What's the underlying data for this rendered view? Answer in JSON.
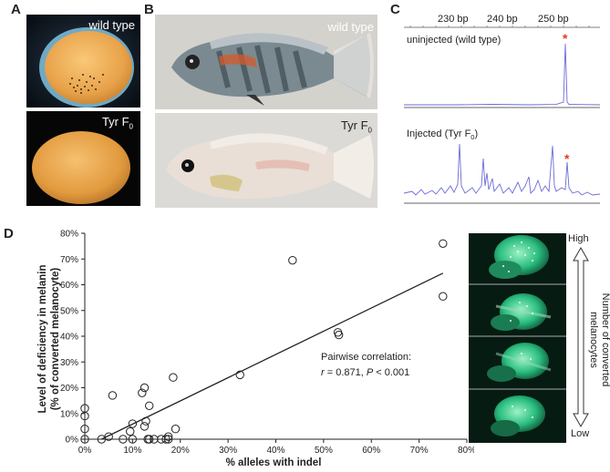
{
  "panels": {
    "a": {
      "letter": "A",
      "top_label": "wild type",
      "bottom_label_main": "Tyr F",
      "bottom_label_sub": "0"
    },
    "b": {
      "letter": "B",
      "top_label": "wild type",
      "bottom_label_main": "Tyr F",
      "bottom_label_sub": "0"
    },
    "c": {
      "letter": "C",
      "bp_labels": [
        "230 bp",
        "240 bp",
        "250 bp"
      ],
      "uninjected_label": "uninjected (wild type)",
      "injected_label_main": "Injected (Tyr F",
      "injected_label_sub": "0",
      "injected_label_end": ")",
      "star": "*"
    },
    "d": {
      "letter": "D",
      "side_high": "High",
      "side_low": "Low",
      "side_title": "Number of converted melanocytes",
      "correlation_title": "Pairwise correlation:",
      "r_label": "r",
      "r_text": " = 0.871, ",
      "p_label": "P",
      "p_text": " < 0.001"
    }
  },
  "chart_data": {
    "type": "scatter",
    "title": "",
    "xlabel": "% alleles with indel",
    "ylabel_line1": "Level of deficiency in melanin",
    "ylabel_line2": "(% of converted melanocyte)",
    "xlim": [
      0,
      80
    ],
    "ylim": [
      0,
      80
    ],
    "x_ticks": [
      0,
      10,
      20,
      30,
      40,
      50,
      60,
      70,
      80
    ],
    "y_ticks": [
      0,
      10,
      20,
      30,
      40,
      50,
      60,
      70,
      80
    ],
    "x_tick_labels": [
      "0%",
      "10%",
      "20%",
      "30%",
      "40%",
      "50%",
      "60%",
      "70%",
      "80%"
    ],
    "y_tick_labels": [
      "0%",
      "10%",
      "20%",
      "30%",
      "40%",
      "50%",
      "60%",
      "70%",
      "80%"
    ],
    "points": [
      [
        0,
        12
      ],
      [
        0,
        9
      ],
      [
        0,
        4
      ],
      [
        0,
        0
      ],
      [
        3.5,
        0
      ],
      [
        5,
        1
      ],
      [
        5.8,
        17
      ],
      [
        8,
        0
      ],
      [
        9.5,
        3
      ],
      [
        10,
        6
      ],
      [
        10,
        0
      ],
      [
        12,
        18
      ],
      [
        12.5,
        20
      ],
      [
        12.5,
        5
      ],
      [
        12.8,
        7
      ],
      [
        13.2,
        0
      ],
      [
        13.5,
        13
      ],
      [
        13.5,
        0
      ],
      [
        14.5,
        0
      ],
      [
        16,
        0
      ],
      [
        17,
        0
      ],
      [
        17.5,
        1
      ],
      [
        17.5,
        0
      ],
      [
        18.5,
        24
      ],
      [
        19,
        4
      ],
      [
        32.5,
        25
      ],
      [
        43.5,
        69.5
      ],
      [
        53,
        41.5
      ],
      [
        53.2,
        40.5
      ],
      [
        75,
        76
      ],
      [
        75,
        55.5
      ]
    ],
    "trendline": {
      "x": [
        3.5,
        75
      ],
      "y": [
        0,
        64.5
      ]
    },
    "grid": false
  }
}
